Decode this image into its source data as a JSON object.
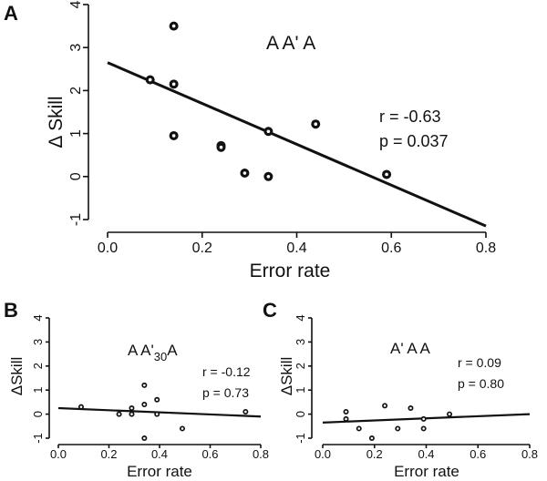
{
  "chart_data": [
    {
      "panel": "A",
      "type": "scatter",
      "title": "A A' A",
      "xlabel": "Error rate",
      "ylabel": "Δ Skill",
      "xlim": [
        0.0,
        0.8
      ],
      "ylim": [
        -1,
        4
      ],
      "xticks": [
        "0.0",
        "0.2",
        "0.4",
        "0.6",
        "0.8"
      ],
      "yticks": [
        "-1",
        "0",
        "1",
        "2",
        "3",
        "4"
      ],
      "annotations": [
        "r = -0.63",
        "p = 0.037"
      ],
      "points": [
        {
          "x": 0.09,
          "y": 2.25
        },
        {
          "x": 0.14,
          "y": 3.5
        },
        {
          "x": 0.14,
          "y": 2.15
        },
        {
          "x": 0.14,
          "y": 0.95
        },
        {
          "x": 0.24,
          "y": 0.72
        },
        {
          "x": 0.24,
          "y": 0.68
        },
        {
          "x": 0.29,
          "y": 0.08
        },
        {
          "x": 0.34,
          "y": 1.05
        },
        {
          "x": 0.34,
          "y": 0.0
        },
        {
          "x": 0.44,
          "y": 1.22
        },
        {
          "x": 0.59,
          "y": 0.05
        }
      ],
      "fit_line": {
        "x": [
          0.0,
          0.8
        ],
        "y": [
          2.65,
          -1.15
        ]
      }
    },
    {
      "panel": "B",
      "type": "scatter",
      "title_main": "A A'",
      "title_sub": "30",
      "title_end": "A",
      "xlabel": "Error rate",
      "ylabel": "ΔSkill",
      "xlim": [
        0.0,
        0.8
      ],
      "ylim": [
        -1,
        4
      ],
      "xticks": [
        "0.0",
        "0.2",
        "0.4",
        "0.6",
        "0.8"
      ],
      "yticks": [
        "-1",
        "0",
        "1",
        "2",
        "3",
        "4"
      ],
      "annotations": [
        "r = -0.12",
        "p = 0.73"
      ],
      "points": [
        {
          "x": 0.09,
          "y": 0.3
        },
        {
          "x": 0.24,
          "y": 0.0
        },
        {
          "x": 0.29,
          "y": 0.25
        },
        {
          "x": 0.29,
          "y": 0.0
        },
        {
          "x": 0.34,
          "y": 1.2
        },
        {
          "x": 0.34,
          "y": 0.4
        },
        {
          "x": 0.34,
          "y": -1.0
        },
        {
          "x": 0.39,
          "y": 0.6
        },
        {
          "x": 0.39,
          "y": 0.0
        },
        {
          "x": 0.49,
          "y": -0.6
        },
        {
          "x": 0.74,
          "y": 0.1
        }
      ],
      "fit_line": {
        "x": [
          0.0,
          0.8
        ],
        "y": [
          0.25,
          -0.1
        ]
      }
    },
    {
      "panel": "C",
      "type": "scatter",
      "title": "A' A  A",
      "xlabel": "Error rate",
      "ylabel": "ΔSkill",
      "xlim": [
        0.0,
        0.8
      ],
      "ylim": [
        -1,
        4
      ],
      "xticks": [
        "0.0",
        "0.2",
        "0.4",
        "0.6",
        "0.8"
      ],
      "yticks": [
        "-1",
        "0",
        "1",
        "2",
        "3",
        "4"
      ],
      "annotations": [
        "r = 0.09",
        "p = 0.80"
      ],
      "points": [
        {
          "x": 0.09,
          "y": 0.1
        },
        {
          "x": 0.09,
          "y": -0.2
        },
        {
          "x": 0.14,
          "y": -0.6
        },
        {
          "x": 0.19,
          "y": -1.0
        },
        {
          "x": 0.24,
          "y": 0.35
        },
        {
          "x": 0.29,
          "y": -0.6
        },
        {
          "x": 0.34,
          "y": 0.25
        },
        {
          "x": 0.39,
          "y": -0.2
        },
        {
          "x": 0.39,
          "y": -0.6
        },
        {
          "x": 0.49,
          "y": 0.0
        }
      ],
      "fit_line": {
        "x": [
          0.0,
          0.8
        ],
        "y": [
          -0.35,
          0.0
        ]
      }
    }
  ]
}
